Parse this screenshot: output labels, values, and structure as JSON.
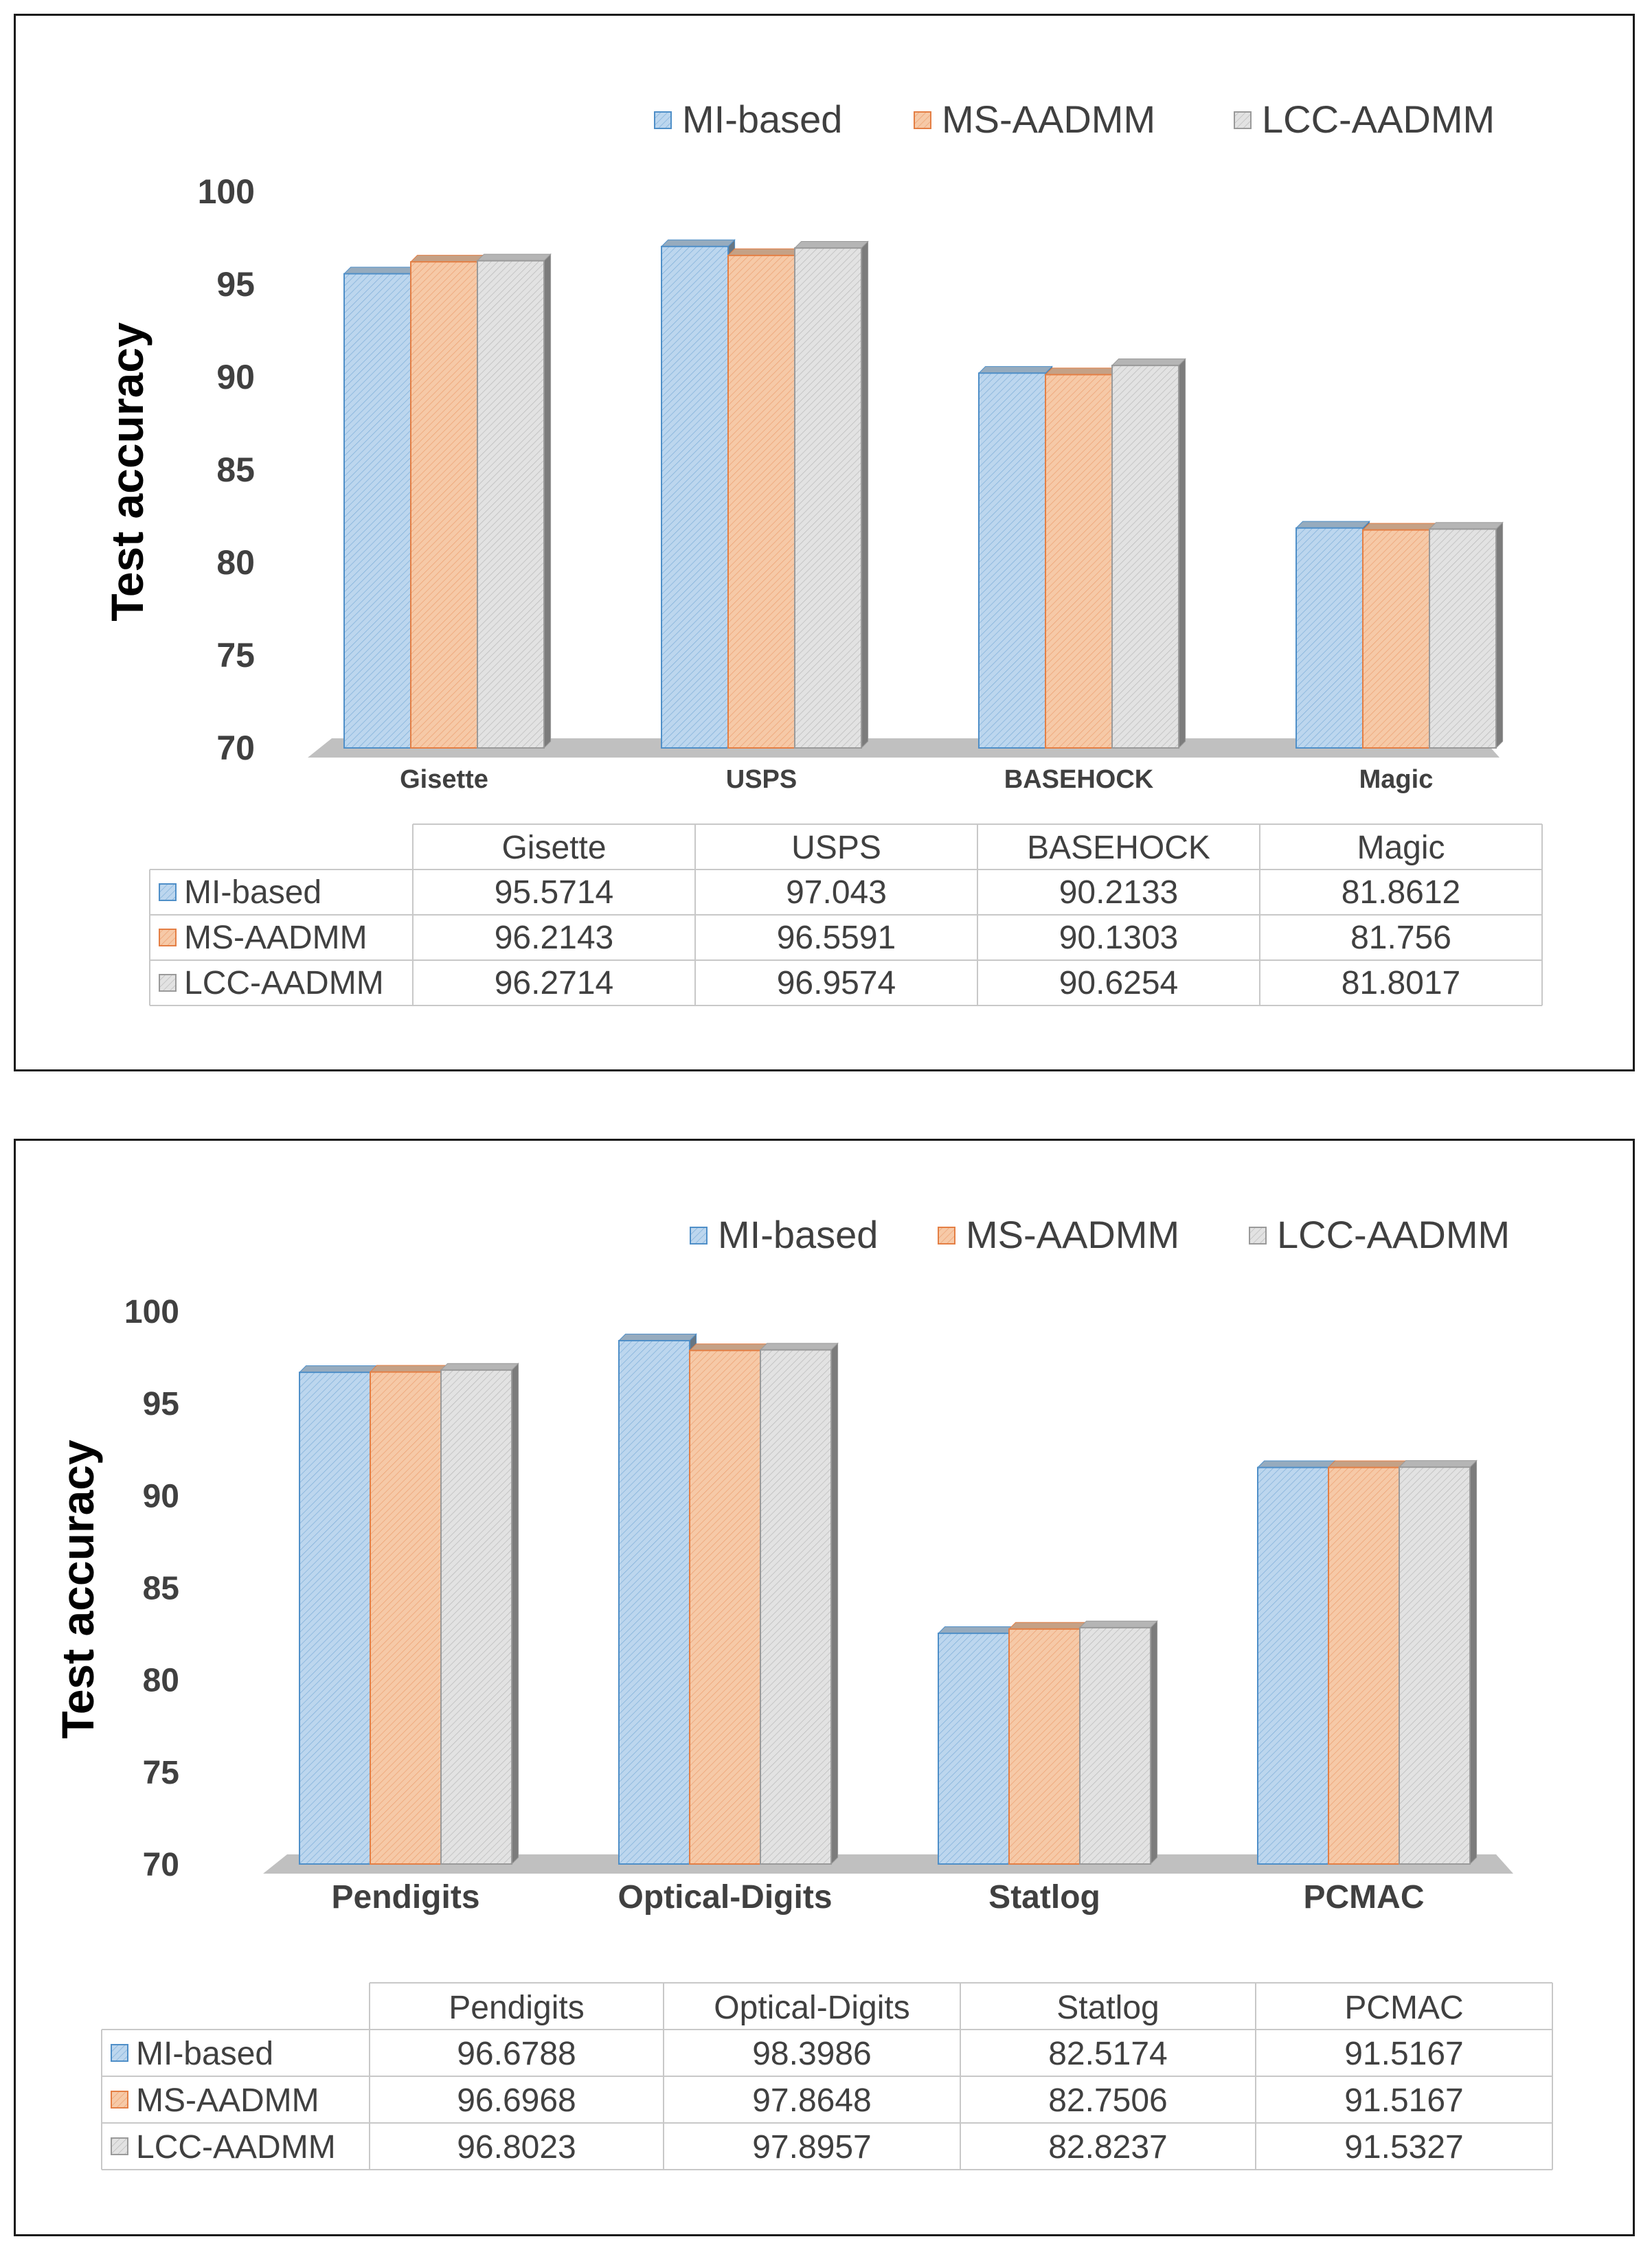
{
  "colors": {
    "mi_based": "#bcd6ee",
    "mi_based_line": "#4f8fc8",
    "ms_aadmm": "#f6c9a7",
    "ms_aadmm_line": "#e47f45",
    "lcc_aadmm": "#e2e2e2",
    "lcc_aadmm_line": "#9a9a9a",
    "floor": "#c0c0c0",
    "text": "#404040"
  },
  "chart_data": [
    {
      "type": "bar",
      "ylabel": "Test accuracy",
      "ylim": [
        70,
        100
      ],
      "yticks": [
        70,
        75,
        80,
        85,
        90,
        95,
        100
      ],
      "categories": [
        "Gisette",
        "USPS",
        "BASEHOCK",
        "Magic"
      ],
      "series": [
        {
          "name": "MI-based",
          "values": [
            95.5714,
            97.043,
            90.2133,
            81.8612
          ],
          "labels": [
            "95.5714",
            "97.043",
            "90.2133",
            "81.8612"
          ]
        },
        {
          "name": "MS-AADMM",
          "values": [
            96.2143,
            96.5591,
            90.1303,
            81.756
          ],
          "labels": [
            "96.2143",
            "96.5591",
            "90.1303",
            "81.756"
          ]
        },
        {
          "name": "LCC-AADMM",
          "values": [
            96.2714,
            96.9574,
            90.6254,
            81.8017
          ],
          "labels": [
            "96.2714",
            "96.9574",
            "90.6254",
            "81.8017"
          ]
        }
      ],
      "legend": "top-right",
      "data_table": true
    },
    {
      "type": "bar",
      "ylabel": "Test accuracy",
      "ylim": [
        70,
        100
      ],
      "yticks": [
        70,
        75,
        80,
        85,
        90,
        95,
        100
      ],
      "categories": [
        "Pendigits",
        "Optical-Digits",
        "Statlog",
        "PCMAC"
      ],
      "series": [
        {
          "name": "MI-based",
          "values": [
            96.6788,
            98.3986,
            82.5174,
            91.5167
          ],
          "labels": [
            "96.6788",
            "98.3986",
            "82.5174",
            "91.5167"
          ]
        },
        {
          "name": "MS-AADMM",
          "values": [
            96.6968,
            97.8648,
            82.7506,
            91.5167
          ],
          "labels": [
            "96.6968",
            "97.8648",
            "82.7506",
            "91.5167"
          ]
        },
        {
          "name": "LCC-AADMM",
          "values": [
            96.8023,
            97.8957,
            82.8237,
            91.5327
          ],
          "labels": [
            "96.8023",
            "97.8957",
            "82.8237",
            "91.5327"
          ]
        }
      ],
      "legend": "top-right",
      "data_table": true
    }
  ]
}
